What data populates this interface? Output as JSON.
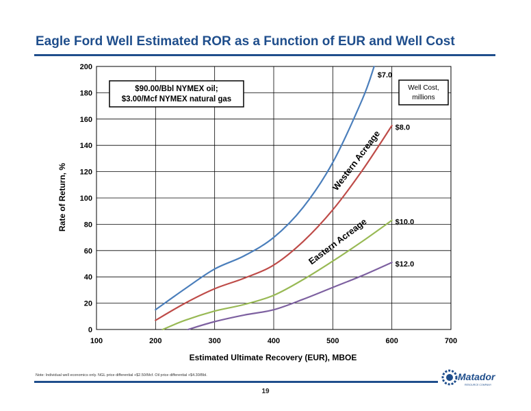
{
  "header": {
    "title": "Eagle Ford Well Estimated ROR as a Function of EUR and Well Cost"
  },
  "chart_data": {
    "type": "line",
    "xlabel": "Estimated Ultimate Recovery (EUR), MBOE",
    "ylabel": "Rate of Return, %",
    "xlim": [
      100,
      700
    ],
    "ylim": [
      0,
      200
    ],
    "x_ticks": [
      "100",
      "200",
      "300",
      "400",
      "500",
      "600",
      "700"
    ],
    "y_ticks": [
      "0",
      "20",
      "40",
      "60",
      "80",
      "100",
      "120",
      "140",
      "160",
      "180",
      "200"
    ],
    "grid": true,
    "assumptions_box": [
      "$90.00/Bbl NYMEX oil;",
      "$3.00/Mcf NYMEX natural gas"
    ],
    "legend_box": [
      "Well Cost,",
      "millions"
    ],
    "annotations": [
      "Western Acreage",
      "Eastern Acreage"
    ],
    "series": [
      {
        "name": "$7.0",
        "color": "#4a7ebb",
        "points": [
          [
            200,
            15
          ],
          [
            250,
            31
          ],
          [
            300,
            46
          ],
          [
            350,
            56
          ],
          [
            400,
            70
          ],
          [
            450,
            93
          ],
          [
            500,
            127
          ],
          [
            550,
            175
          ],
          [
            570,
            200
          ]
        ]
      },
      {
        "name": "$8.0",
        "color": "#be4b48",
        "points": [
          [
            200,
            7
          ],
          [
            250,
            20
          ],
          [
            300,
            31
          ],
          [
            350,
            39
          ],
          [
            400,
            49
          ],
          [
            450,
            67
          ],
          [
            500,
            91
          ],
          [
            550,
            121
          ],
          [
            600,
            155
          ]
        ]
      },
      {
        "name": "$10.0",
        "color": "#98b954",
        "points": [
          [
            212,
            0
          ],
          [
            250,
            7
          ],
          [
            300,
            14
          ],
          [
            350,
            19
          ],
          [
            400,
            26
          ],
          [
            450,
            38
          ],
          [
            500,
            52
          ],
          [
            550,
            67
          ],
          [
            600,
            83
          ]
        ]
      },
      {
        "name": "$12.0",
        "color": "#7d60a0",
        "points": [
          [
            255,
            0
          ],
          [
            300,
            6
          ],
          [
            350,
            11
          ],
          [
            400,
            15
          ],
          [
            450,
            23
          ],
          [
            500,
            32
          ],
          [
            550,
            41
          ],
          [
            600,
            51
          ]
        ]
      }
    ]
  },
  "footer": {
    "note": "Note: Individual well economics only.  NGL price differential +$2.50/Mcf.  Oil price differential +$4.30/Bbl.",
    "page_number": "19",
    "logo_text": "Matador",
    "logo_subtext": "RESOURCE COMPANY"
  }
}
